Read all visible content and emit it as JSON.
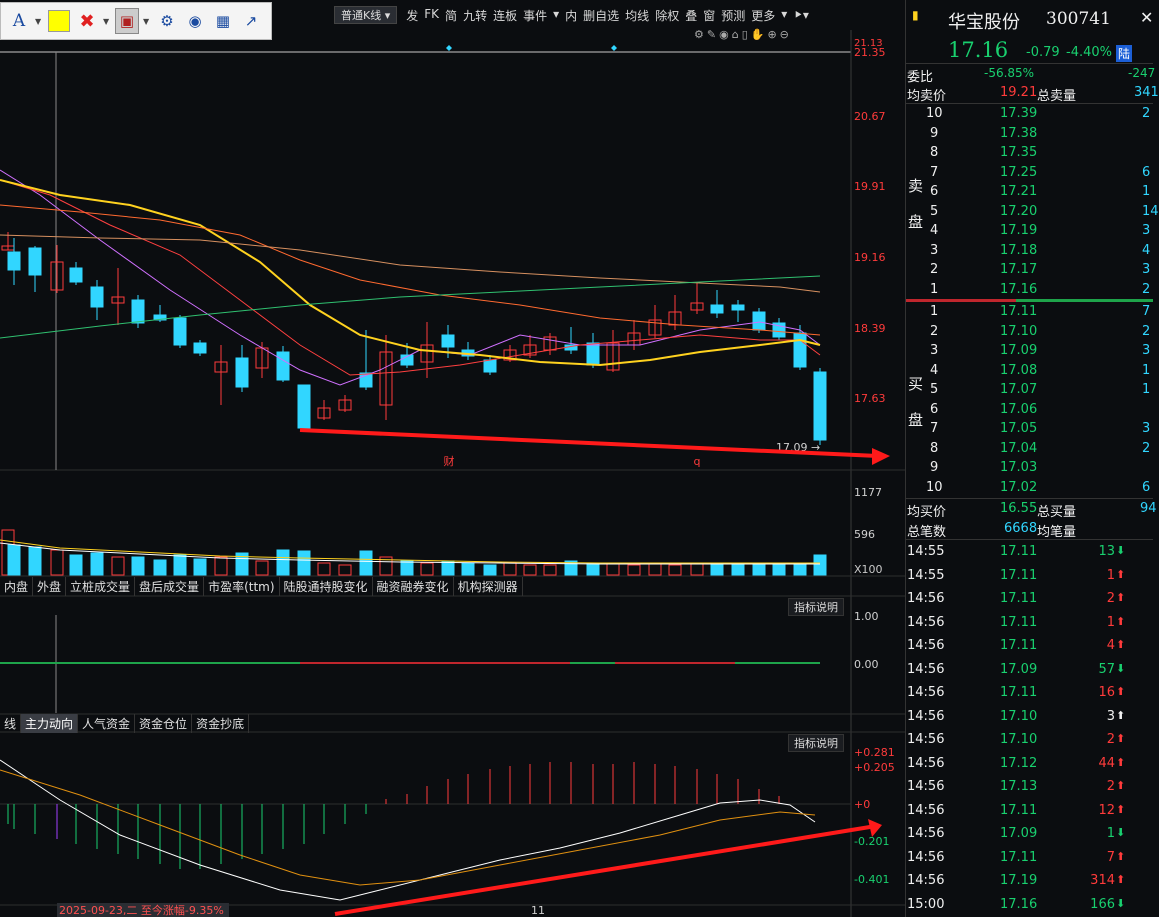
{
  "toolbar": {
    "font_icon": "A",
    "delete_icon": "close-icon",
    "settings_icon": "gear-icon"
  },
  "menu": {
    "period_select": "普通K线",
    "items": [
      "发",
      "FK",
      "简",
      "九转",
      "连板",
      "事件",
      "内",
      "删自选",
      "均线",
      "除权",
      "叠",
      "窗",
      "预测",
      "更多"
    ]
  },
  "price_axis": [
    "21.35",
    "20.67",
    "19.91",
    "19.16",
    "18.39",
    "17.63"
  ],
  "price_top_label": "21.13",
  "low_label": "17.09",
  "event_marks": [
    "财",
    "q"
  ],
  "volume_axis": [
    "1177",
    "596",
    "X100"
  ],
  "tabs1": [
    "内盘",
    "外盘",
    "立桩成交量",
    "盘后成交量",
    "市盈率(ttm)",
    "陆股通持股变化",
    "融资融券变化",
    "机构探测器"
  ],
  "indicator_button": "指标说明",
  "ind1_axis": [
    "1.00",
    "0.00"
  ],
  "tabs2": [
    "线",
    "主力动向",
    "人气资金",
    "资金仓位",
    "资金抄底"
  ],
  "tabs2_active": 1,
  "ind2_axis": [
    "+0.281",
    "+0.205",
    "+0",
    "-0.201",
    "-0.401"
  ],
  "date_label": "2025-09-23,二 至今涨幅-9.35%",
  "x_tick": "11",
  "stock": {
    "name": "华宝股份",
    "code": "300741",
    "price": "17.16",
    "change": "-0.79",
    "pct": "-4.40%",
    "tag": "陆"
  },
  "weibi": {
    "label": "委比",
    "value": "-56.85%",
    "value2": "-247"
  },
  "avg_sell": {
    "label": "均卖价",
    "value": "19.21",
    "label2": "总卖量",
    "value2": "341"
  },
  "sell_side_label": [
    "卖",
    "盘"
  ],
  "buy_side_label": [
    "买",
    "盘"
  ],
  "asks": [
    {
      "level": "10",
      "price": "17.39",
      "vol": "2"
    },
    {
      "level": "9",
      "price": "17.38",
      "vol": ""
    },
    {
      "level": "8",
      "price": "17.35",
      "vol": ""
    },
    {
      "level": "7",
      "price": "17.25",
      "vol": "6"
    },
    {
      "level": "6",
      "price": "17.21",
      "vol": "1"
    },
    {
      "level": "5",
      "price": "17.20",
      "vol": "14"
    },
    {
      "level": "4",
      "price": "17.19",
      "vol": "3"
    },
    {
      "level": "3",
      "price": "17.18",
      "vol": "4"
    },
    {
      "level": "2",
      "price": "17.17",
      "vol": "3"
    },
    {
      "level": "1",
      "price": "17.16",
      "vol": "2"
    }
  ],
  "bids": [
    {
      "level": "1",
      "price": "17.11",
      "vol": "7"
    },
    {
      "level": "2",
      "price": "17.10",
      "vol": "2"
    },
    {
      "level": "3",
      "price": "17.09",
      "vol": "3"
    },
    {
      "level": "4",
      "price": "17.08",
      "vol": "1"
    },
    {
      "level": "5",
      "price": "17.07",
      "vol": "1"
    },
    {
      "level": "6",
      "price": "17.06",
      "vol": ""
    },
    {
      "level": "7",
      "price": "17.05",
      "vol": "3"
    },
    {
      "level": "8",
      "price": "17.04",
      "vol": "2"
    },
    {
      "level": "9",
      "price": "17.03",
      "vol": ""
    },
    {
      "level": "10",
      "price": "17.02",
      "vol": "6"
    }
  ],
  "avg_buy": {
    "label": "均买价",
    "value": "16.55",
    "label2": "总买量",
    "value2": "94"
  },
  "total_trades": {
    "label": "总笔数",
    "value": "6668",
    "label2": "均笔量"
  },
  "ticks": [
    {
      "time": "14:55",
      "price": "17.11",
      "vol": "13",
      "dir": "down",
      "pc": "green"
    },
    {
      "time": "14:55",
      "price": "17.11",
      "vol": "1",
      "dir": "up",
      "pc": "green"
    },
    {
      "time": "14:56",
      "price": "17.11",
      "vol": "2",
      "dir": "up",
      "pc": "green"
    },
    {
      "time": "14:56",
      "price": "17.11",
      "vol": "1",
      "dir": "up",
      "pc": "green"
    },
    {
      "time": "14:56",
      "price": "17.11",
      "vol": "4",
      "dir": "up",
      "pc": "green"
    },
    {
      "time": "14:56",
      "price": "17.09",
      "vol": "57",
      "dir": "down",
      "pc": "green"
    },
    {
      "time": "14:56",
      "price": "17.11",
      "vol": "16",
      "dir": "up",
      "pc": "green"
    },
    {
      "time": "14:56",
      "price": "17.10",
      "vol": "3",
      "dir": "up",
      "pc": "green"
    },
    {
      "time": "14:56",
      "price": "17.10",
      "vol": "2",
      "dir": "up",
      "pc": "green"
    },
    {
      "time": "14:56",
      "price": "17.12",
      "vol": "44",
      "dir": "up",
      "pc": "green"
    },
    {
      "time": "14:56",
      "price": "17.13",
      "vol": "2",
      "dir": "up",
      "pc": "green"
    },
    {
      "time": "14:56",
      "price": "17.11",
      "vol": "12",
      "dir": "up",
      "pc": "green"
    },
    {
      "time": "14:56",
      "price": "17.09",
      "vol": "1",
      "dir": "down",
      "pc": "green"
    },
    {
      "time": "14:56",
      "price": "17.11",
      "vol": "7",
      "dir": "up",
      "pc": "green"
    },
    {
      "time": "14:56",
      "price": "17.19",
      "vol": "314",
      "dir": "up",
      "pc": "green"
    },
    {
      "time": "15:00",
      "price": "17.16",
      "vol": "166",
      "dir": "down",
      "pc": "green"
    }
  ],
  "colors": {
    "up": "#ff3b3b",
    "down": "#19d06f",
    "candle_down": "#31d6ff",
    "accent_cyan": "#31d6ff",
    "ma_yellow": "#ffd21f"
  }
}
